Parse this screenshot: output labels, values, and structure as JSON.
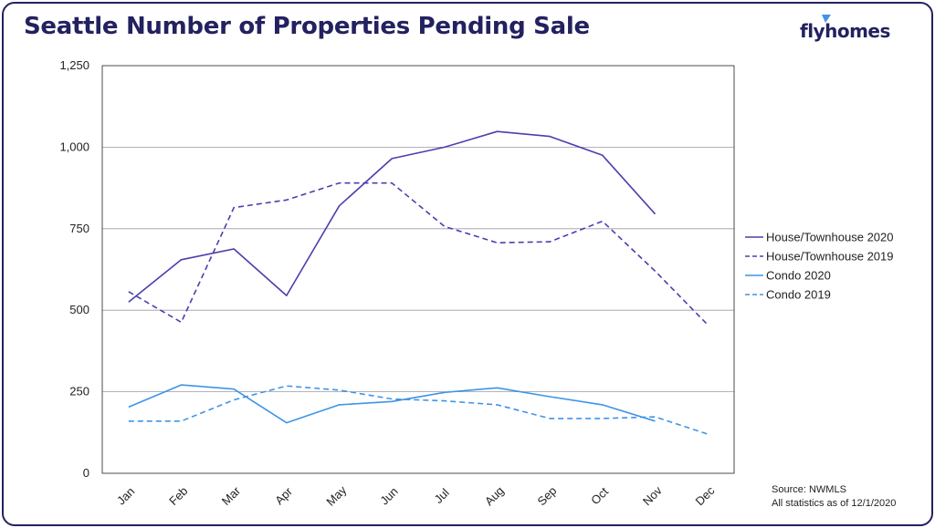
{
  "header": {
    "title": "Seattle Number of Properties Pending Sale",
    "brand": "flyhomes"
  },
  "footnote": {
    "source": "Source: NWMLS",
    "as_of": "All statistics as of 12/1/2020"
  },
  "colors": {
    "border": "#23215f",
    "house": "#4b3fae",
    "condo": "#3f94e6",
    "grid": "#9a9aa6"
  },
  "chart_data": {
    "type": "line",
    "categories": [
      "Jan",
      "Feb",
      "Mar",
      "Apr",
      "May",
      "Jun",
      "Jul",
      "Aug",
      "Sep",
      "Oct",
      "Nov",
      "Dec"
    ],
    "ylim": [
      0,
      1250
    ],
    "yticks": [
      0,
      250,
      500,
      750,
      1000,
      1250
    ],
    "ytick_labels": [
      "0",
      "250",
      "500",
      "750",
      "1,000",
      "1,250"
    ],
    "grid": true,
    "legend_position": "right",
    "series": [
      {
        "name": "House/Townhouse 2020",
        "style": "solid",
        "color": "#4b3fae",
        "values": [
          525,
          655,
          688,
          545,
          820,
          965,
          1000,
          1048,
          1033,
          975,
          795,
          null
        ]
      },
      {
        "name": "House/Townhouse 2019",
        "style": "dashed",
        "color": "#4b3fae",
        "values": [
          557,
          463,
          815,
          838,
          890,
          890,
          757,
          707,
          710,
          773,
          620,
          455
        ]
      },
      {
        "name": "Condo 2020",
        "style": "solid",
        "color": "#3f94e6",
        "values": [
          203,
          271,
          258,
          155,
          210,
          220,
          248,
          262,
          235,
          210,
          160,
          null
        ]
      },
      {
        "name": "Condo 2019",
        "style": "dashed",
        "color": "#3f94e6",
        "values": [
          160,
          160,
          225,
          268,
          255,
          228,
          222,
          210,
          168,
          168,
          173,
          120
        ]
      }
    ]
  }
}
